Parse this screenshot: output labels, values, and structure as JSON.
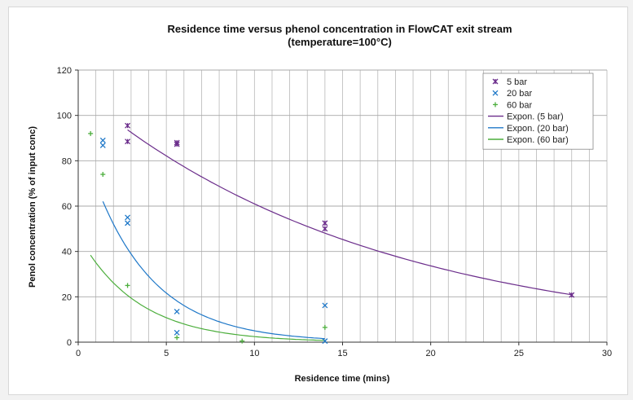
{
  "chart_data": {
    "type": "scatter",
    "title": "Residence time versus phenol concentration in FlowCAT exit stream",
    "subtitle": "(temperature=100°C)",
    "xlabel": "Residence time (mins)",
    "ylabel": "Penol concentration (% of input conc)",
    "xlim": [
      0,
      30
    ],
    "ylim": [
      0,
      120
    ],
    "xticks": [
      0,
      5,
      10,
      15,
      20,
      25,
      30
    ],
    "yticks": [
      0,
      20,
      40,
      60,
      80,
      100,
      120
    ],
    "grid": "vertical gridlines every 1 unit; horizontal gridlines every 20",
    "legend_position": "top-right",
    "series": [
      {
        "name": "5 bar",
        "kind": "points",
        "marker": "star-x",
        "color": "#6b2d8b",
        "x": [
          2.8,
          2.8,
          5.6,
          5.6,
          14,
          14,
          28
        ],
        "y": [
          95.5,
          88.5,
          88,
          87.3,
          52.5,
          50,
          20.8
        ]
      },
      {
        "name": "20 bar",
        "kind": "points",
        "marker": "x",
        "color": "#1f78c8",
        "x": [
          1.4,
          1.4,
          2.8,
          2.8,
          5.6,
          5.6,
          14,
          14
        ],
        "y": [
          89,
          86.8,
          55,
          52.5,
          13.5,
          4.2,
          16.2,
          0.5
        ]
      },
      {
        "name": "60 bar",
        "kind": "points",
        "marker": "plus",
        "color": "#4cae3c",
        "x": [
          0.7,
          1.4,
          2.8,
          5.6,
          9.3,
          14
        ],
        "y": [
          92,
          74,
          25,
          2,
          0.5,
          6.5
        ]
      },
      {
        "name": "Expon. (5 bar)",
        "kind": "trendline",
        "color": "#6b2d8b",
        "x_range": [
          2.8,
          28
        ],
        "a": 110.6,
        "b": -0.0595
      },
      {
        "name": "Expon. (20 bar)",
        "kind": "trendline",
        "color": "#1f78c8",
        "x_range": [
          1.4,
          14
        ],
        "a": 93.5,
        "b": -0.2925
      },
      {
        "name": "Expon. (60 bar)",
        "kind": "trendline",
        "color": "#4cae3c",
        "x_range": [
          0.7,
          14
        ],
        "a": 47.2,
        "b": -0.2955
      }
    ]
  }
}
